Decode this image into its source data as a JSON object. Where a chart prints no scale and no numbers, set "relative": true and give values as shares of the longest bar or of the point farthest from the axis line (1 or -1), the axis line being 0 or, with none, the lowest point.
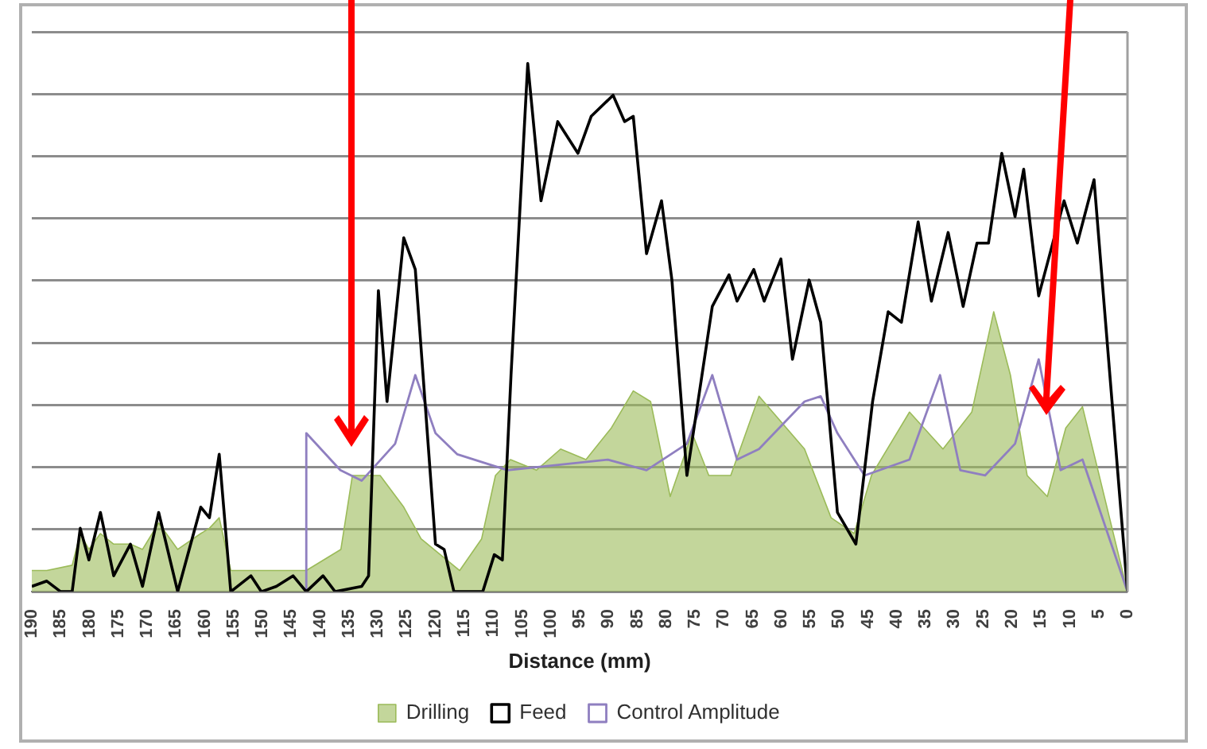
{
  "chart_data": {
    "type": "line",
    "xlabel": "Distance (mm)",
    "relative": true,
    "grid": "y",
    "legend": "bottom",
    "marker": "none",
    "xlim": [
      190,
      0
    ],
    "xticks": [
      190,
      185,
      180,
      175,
      170,
      165,
      160,
      155,
      150,
      145,
      140,
      135,
      130,
      125,
      120,
      115,
      110,
      105,
      100,
      95,
      90,
      85,
      80,
      75,
      70,
      65,
      60,
      55,
      50,
      45,
      40,
      35,
      30,
      25,
      20,
      15,
      10,
      5,
      0
    ],
    "series": [
      {
        "name": "Drilling",
        "type": "area",
        "color": "#9bbb59",
        "x": [
          190,
          187.4,
          183,
          181.6,
          180.1,
          178.1,
          175.8,
          172.9,
          170.8,
          168,
          164.7,
          160.7,
          159.2,
          157.5,
          155.5,
          142.4,
          136.4,
          134.4,
          129.6,
          125.5,
          122.5,
          115.8,
          112,
          109.6,
          107,
          102.5,
          98.3,
          93.9,
          89.5,
          85.7,
          82.7,
          79.3,
          75.5,
          72.6,
          68.8,
          63.9,
          56,
          51.4,
          47.4,
          44.4,
          37.8,
          32,
          27,
          23.2,
          20.3,
          17.4,
          13.9,
          10.7,
          7.8,
          0
        ],
        "values": [
          0.04,
          0.04,
          0.05,
          0.11,
          0.08,
          0.11,
          0.09,
          0.09,
          0.08,
          0.13,
          0.08,
          0.11,
          0.12,
          0.14,
          0.04,
          0.04,
          0.08,
          0.22,
          0.22,
          0.16,
          0.1,
          0.04,
          0.1,
          0.22,
          0.25,
          0.23,
          0.27,
          0.25,
          0.31,
          0.38,
          0.36,
          0.18,
          0.3,
          0.22,
          0.22,
          0.37,
          0.27,
          0.14,
          0.11,
          0.22,
          0.34,
          0.27,
          0.34,
          0.53,
          0.41,
          0.22,
          0.18,
          0.31,
          0.35,
          0
        ]
      },
      {
        "name": "Feed",
        "type": "line",
        "color": "#000000",
        "x": [
          190,
          187.4,
          185,
          183,
          181.6,
          180.1,
          178.1,
          175.8,
          172.9,
          170.8,
          168,
          164.7,
          160.7,
          159.2,
          157.5,
          155.5,
          152,
          150.2,
          147.6,
          144.7,
          142.4,
          139.5,
          137.4,
          132.8,
          131.6,
          129.9,
          128.4,
          125.5,
          123.5,
          120,
          118.5,
          116.8,
          111.8,
          109.8,
          108.4,
          106.9,
          104,
          101.7,
          98.8,
          95.3,
          93,
          89.2,
          87.2,
          85.7,
          83.4,
          80.8,
          79,
          76.4,
          72,
          69.1,
          67.7,
          64.8,
          63,
          60.1,
          58.1,
          55.2,
          53.2,
          50.3,
          47.1,
          44.2,
          41.5,
          39.2,
          36.3,
          34,
          31.1,
          28.5,
          26.1,
          24.1,
          21.8,
          19.5,
          18,
          15.4,
          11,
          8.7,
          5.8,
          3.8,
          0
        ],
        "values": [
          0.01,
          0.02,
          0,
          0,
          0.12,
          0.06,
          0.15,
          0.03,
          0.09,
          0.01,
          0.15,
          0,
          0.16,
          0.14,
          0.26,
          0,
          0.03,
          0,
          0.01,
          0.03,
          0,
          0.03,
          0,
          0.01,
          0.03,
          0.57,
          0.36,
          0.67,
          0.61,
          0.09,
          0.08,
          0,
          0,
          0.07,
          0.06,
          0.41,
          1,
          0.74,
          0.89,
          0.83,
          0.9,
          0.94,
          0.89,
          0.9,
          0.64,
          0.74,
          0.59,
          0.22,
          0.54,
          0.6,
          0.55,
          0.61,
          0.55,
          0.63,
          0.44,
          0.59,
          0.51,
          0.15,
          0.09,
          0.36,
          0.53,
          0.51,
          0.7,
          0.55,
          0.68,
          0.54,
          0.66,
          0.66,
          0.83,
          0.71,
          0.8,
          0.56,
          0.74,
          0.66,
          0.78,
          0.51,
          0
        ]
      },
      {
        "name": "Control Amplitude",
        "type": "line",
        "color": "#8f7fc0",
        "x": [
          142.5,
          142.4,
          136.5,
          132.8,
          127,
          123.5,
          120,
          116.2,
          107.5,
          90.1,
          83.4,
          76.4,
          72,
          67.7,
          63.9,
          56,
          53.2,
          50.3,
          45.6,
          37.8,
          32.5,
          29,
          24.7,
          19.5,
          15.4,
          11.6,
          7.8,
          0
        ],
        "values": [
          0,
          0.3,
          0.23,
          0.21,
          0.28,
          0.41,
          0.3,
          0.26,
          0.23,
          0.25,
          0.23,
          0.28,
          0.41,
          0.25,
          0.27,
          0.36,
          0.37,
          0.3,
          0.22,
          0.25,
          0.41,
          0.23,
          0.22,
          0.28,
          0.44,
          0.23,
          0.25,
          0
        ]
      }
    ]
  }
}
